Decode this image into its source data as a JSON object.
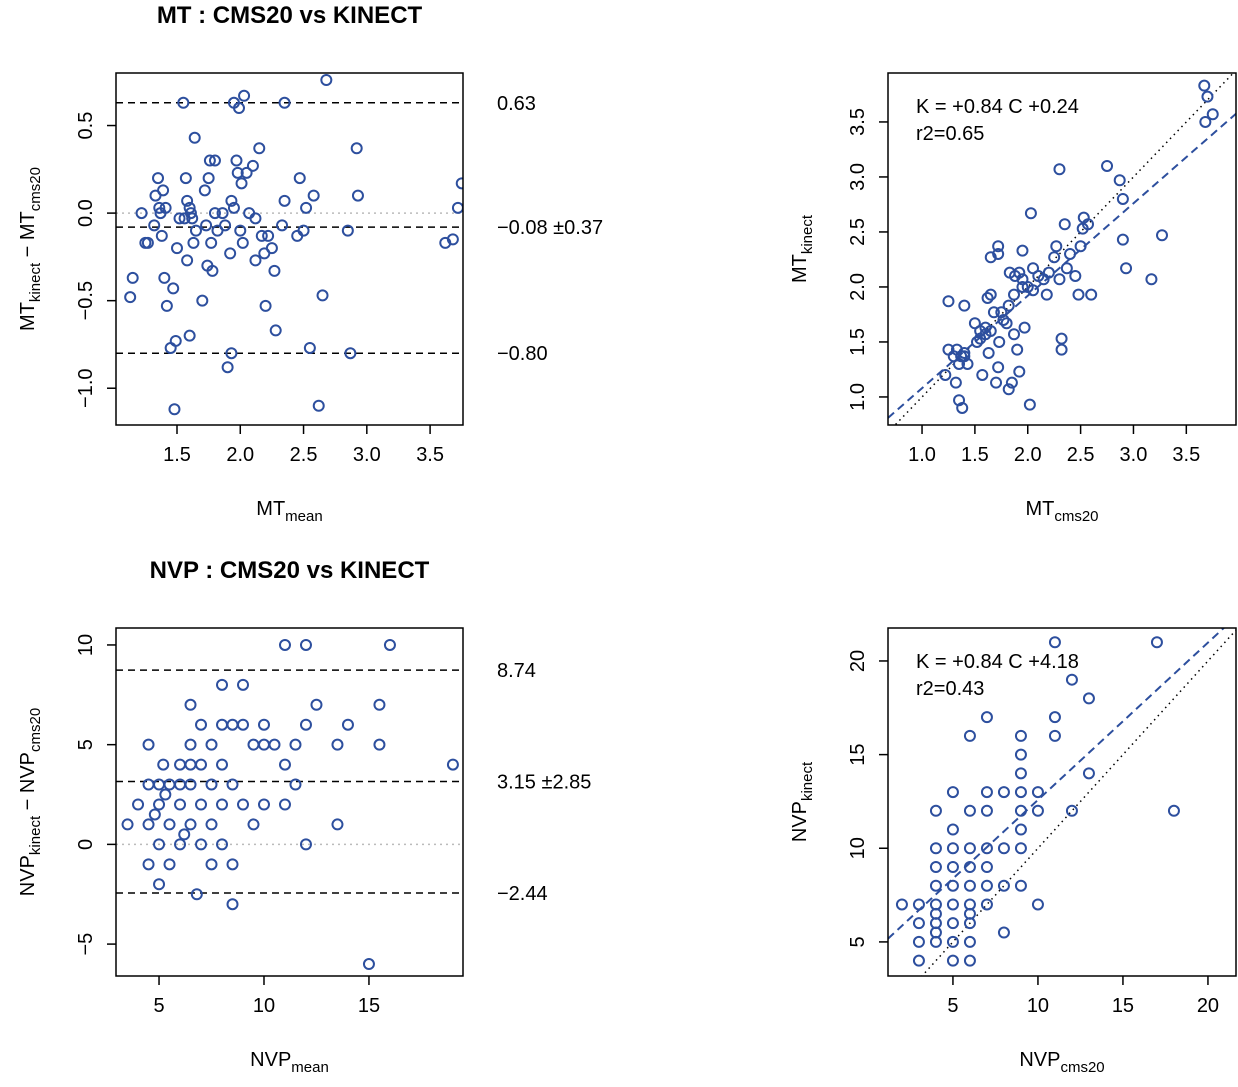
{
  "chart_data": [
    {
      "type": "bland-altman",
      "title": "MT : CMS20 vs KINECT",
      "color": "#2d4f9e",
      "xlabel": [
        "MT",
        "mean"
      ],
      "ylabel": [
        "MT",
        "kinect",
        " − MT",
        "cms20"
      ],
      "xlim": [
        1.018,
        3.76
      ],
      "ylim": [
        -1.21,
        0.8
      ],
      "xticks": [
        1.5,
        {
          "value": 2,
          "label": "2.0"
        },
        2.5,
        {
          "value": 3,
          "label": "3.0"
        },
        3.5
      ],
      "yticks": [
        {
          "value": -1,
          "label": "−1.0"
        },
        {
          "value": -0.5,
          "label": "−0.5"
        },
        {
          "value": 0,
          "label": "0.0"
        },
        0.5
      ],
      "refline": 0,
      "hlines": [
        {
          "value": 0.63,
          "label": "0.63"
        },
        {
          "value": -0.08,
          "label": "−0.08 ±0.37"
        },
        {
          "value": -0.8,
          "label": "−0.80"
        }
      ],
      "x": [
        1.13,
        1.15,
        1.22,
        1.25,
        1.27,
        1.32,
        1.33,
        1.35,
        1.36,
        1.37,
        1.38,
        1.39,
        1.4,
        1.41,
        1.42,
        1.45,
        1.47,
        1.48,
        1.49,
        1.5,
        1.52,
        1.55,
        1.56,
        1.57,
        1.58,
        1.58,
        1.6,
        1.6,
        1.61,
        1.62,
        1.63,
        1.64,
        1.65,
        1.7,
        1.72,
        1.73,
        1.74,
        1.75,
        1.76,
        1.77,
        1.78,
        1.8,
        1.8,
        1.82,
        1.86,
        1.88,
        1.9,
        1.92,
        1.93,
        1.93,
        1.95,
        1.95,
        1.97,
        1.98,
        1.99,
        2.0,
        2.01,
        2.02,
        2.03,
        2.05,
        2.07,
        2.1,
        2.12,
        2.12,
        2.15,
        2.17,
        2.19,
        2.2,
        2.22,
        2.25,
        2.27,
        2.28,
        2.33,
        2.35,
        2.35,
        2.45,
        2.47,
        2.5,
        2.52,
        2.55,
        2.58,
        2.62,
        2.65,
        2.68,
        2.85,
        2.87,
        2.92,
        2.93,
        3.62,
        3.68,
        3.72,
        3.75
      ],
      "values": [
        -0.48,
        -0.37,
        0.0,
        -0.17,
        -0.17,
        -0.07,
        0.1,
        0.2,
        0.03,
        0.0,
        -0.13,
        0.13,
        -0.37,
        0.03,
        -0.53,
        -0.77,
        -0.43,
        -1.12,
        -0.73,
        -0.2,
        -0.03,
        0.63,
        -0.03,
        0.2,
        0.07,
        -0.27,
        -0.7,
        0.03,
        0.0,
        -0.03,
        -0.17,
        0.43,
        -0.1,
        -0.5,
        0.13,
        -0.07,
        -0.3,
        0.2,
        0.3,
        -0.17,
        -0.33,
        0.3,
        0.0,
        -0.1,
        0.0,
        -0.07,
        -0.88,
        -0.23,
        0.07,
        -0.8,
        0.63,
        0.03,
        0.3,
        0.23,
        0.6,
        -0.1,
        0.17,
        -0.17,
        0.67,
        0.23,
        0.0,
        0.27,
        -0.03,
        -0.27,
        0.37,
        -0.13,
        -0.23,
        -0.53,
        -0.13,
        -0.2,
        -0.33,
        -0.67,
        -0.07,
        0.63,
        0.07,
        -0.13,
        0.2,
        -0.1,
        0.03,
        -0.77,
        0.1,
        -1.1,
        -0.47,
        0.76,
        -0.1,
        -0.8,
        0.37,
        0.1,
        -0.17,
        -0.15,
        0.03,
        0.17
      ]
    },
    {
      "type": "scatter",
      "color": "#2d4f9e",
      "xlabel": [
        "MT",
        "cms20"
      ],
      "ylabel": [
        "MT",
        "kinect"
      ],
      "annotations": [
        "K = +0.84 C +0.24",
        "r2=0.65"
      ],
      "fit": {
        "slope": 0.84,
        "intercept": 0.24
      },
      "identity_line": true,
      "xlim": [
        0.678,
        3.97
      ],
      "ylim": [
        0.745,
        3.945
      ],
      "xticks": [
        {
          "value": 1,
          "label": "1.0"
        },
        1.5,
        {
          "value": 2,
          "label": "2.0"
        },
        2.5,
        {
          "value": 3,
          "label": "3.0"
        },
        3.5
      ],
      "yticks": [
        {
          "value": 1,
          "label": "1.0"
        },
        1.5,
        {
          "value": 2,
          "label": "2.0"
        },
        2.5,
        {
          "value": 3,
          "label": "3.0"
        },
        3.5
      ],
      "x": [
        1.22,
        1.25,
        1.25,
        1.3,
        1.32,
        1.33,
        1.35,
        1.35,
        1.37,
        1.38,
        1.4,
        1.4,
        1.4,
        1.43,
        1.5,
        1.52,
        1.55,
        1.55,
        1.57,
        1.6,
        1.6,
        1.62,
        1.63,
        1.65,
        1.65,
        1.65,
        1.68,
        1.7,
        1.72,
        1.73,
        1.72,
        1.72,
        1.75,
        1.77,
        1.8,
        1.82,
        1.82,
        1.83,
        1.85,
        1.87,
        1.87,
        1.88,
        1.9,
        1.92,
        1.92,
        1.95,
        1.95,
        1.95,
        1.97,
        2.0,
        2.02,
        2.03,
        2.05,
        2.05,
        2.1,
        2.15,
        2.18,
        2.2,
        2.25,
        2.27,
        2.3,
        2.3,
        2.32,
        2.32,
        2.35,
        2.37,
        2.4,
        2.45,
        2.48,
        2.5,
        2.52,
        2.53,
        2.57,
        2.6,
        2.75,
        2.87,
        2.9,
        2.9,
        2.93,
        3.17,
        3.27,
        3.67,
        3.68,
        3.7,
        3.75
      ],
      "values": [
        1.2,
        1.87,
        1.43,
        1.37,
        1.13,
        1.43,
        0.97,
        1.3,
        1.37,
        0.9,
        1.4,
        1.37,
        1.83,
        1.3,
        1.67,
        1.5,
        1.6,
        1.53,
        1.2,
        1.63,
        1.57,
        1.9,
        1.4,
        1.6,
        1.93,
        2.27,
        1.77,
        1.13,
        1.27,
        1.5,
        2.3,
        2.37,
        1.77,
        1.7,
        1.67,
        1.83,
        1.07,
        2.13,
        1.13,
        1.57,
        1.93,
        2.1,
        1.43,
        2.13,
        1.23,
        2.07,
        2.0,
        2.33,
        1.63,
        2.0,
        0.93,
        2.67,
        1.97,
        2.17,
        2.1,
        2.07,
        1.93,
        2.13,
        2.27,
        2.37,
        3.07,
        2.07,
        1.53,
        1.43,
        2.57,
        2.17,
        2.3,
        2.1,
        1.93,
        2.37,
        2.53,
        2.63,
        2.57,
        1.93,
        3.1,
        2.97,
        2.8,
        2.43,
        2.17,
        2.07,
        2.47,
        3.83,
        3.5,
        3.73,
        3.57
      ]
    },
    {
      "type": "bland-altman",
      "title": "NVP : CMS20 vs KINECT",
      "color": "#2d4f9e",
      "xlabel": [
        "NVP",
        "mean"
      ],
      "ylabel": [
        "NVP",
        "kinect",
        " − NVP",
        "cms20"
      ],
      "xlim": [
        2.95,
        19.48
      ],
      "ylim": [
        -6.6,
        10.85
      ],
      "xticks": [
        5,
        10,
        15
      ],
      "yticks": [
        {
          "value": -5,
          "label": "−5"
        },
        0,
        5,
        10
      ],
      "refline": 0,
      "hlines": [
        {
          "value": 8.74,
          "label": "8.74"
        },
        {
          "value": 3.15,
          "label": "3.15 ±2.85"
        },
        {
          "value": -2.44,
          "label": "−2.44"
        }
      ],
      "x": [
        3.5,
        4,
        4.5,
        4.5,
        4.5,
        4.5,
        4.8,
        5,
        5,
        5,
        5,
        5.2,
        5.3,
        5.5,
        5.5,
        5.5,
        6,
        6,
        6,
        6,
        6.2,
        6.5,
        6.5,
        6.5,
        6.5,
        6.5,
        6.8,
        7,
        7,
        7,
        7,
        7.5,
        7.5,
        7.5,
        7.5,
        8,
        8,
        8,
        8,
        8,
        8.5,
        8.5,
        8.5,
        8.5,
        9,
        9,
        9,
        9.5,
        9.5,
        10,
        10,
        10,
        10.5,
        11,
        11,
        11,
        11.5,
        11.5,
        12,
        12,
        12,
        12.5,
        13.5,
        13.5,
        14,
        15,
        15.5,
        15.5,
        16,
        19
      ],
      "values": [
        1,
        2,
        5,
        3,
        1,
        -1,
        1.5,
        3,
        2,
        -2,
        0,
        4,
        2.5,
        -1,
        3,
        1,
        4,
        3,
        2,
        0,
        0.5,
        7,
        5,
        3,
        1,
        4,
        -2.5,
        6,
        4,
        2,
        0,
        5,
        3,
        1,
        -1,
        8,
        6,
        4,
        2,
        0,
        -1,
        -3,
        6,
        3,
        8,
        6,
        2,
        1,
        5,
        6,
        5,
        2,
        5,
        10,
        4,
        2,
        5,
        3,
        10,
        6,
        0,
        7,
        5,
        1,
        6,
        -6,
        7,
        5,
        10,
        4
      ]
    },
    {
      "type": "scatter",
      "color": "#2d4f9e",
      "xlabel": [
        "NVP",
        "cms20"
      ],
      "ylabel": [
        "NVP",
        "kinect"
      ],
      "annotations": [
        "K = +0.84 C +4.18",
        "r2=0.43"
      ],
      "fit": {
        "slope": 0.84,
        "intercept": 4.18
      },
      "identity_line": true,
      "xlim": [
        1.18,
        21.65
      ],
      "ylim": [
        3.18,
        21.76
      ],
      "xticks": [
        5,
        10,
        15,
        20
      ],
      "yticks": [
        5,
        10,
        15,
        20
      ],
      "x": [
        2,
        3,
        3,
        3,
        3,
        4,
        4,
        4,
        4,
        4,
        4,
        4,
        4,
        4,
        5,
        5,
        5,
        5,
        5,
        5,
        5,
        5,
        5,
        6,
        6,
        6,
        6,
        6,
        6,
        6,
        6,
        6,
        6,
        7,
        7,
        7,
        7,
        7,
        7,
        7,
        8,
        8,
        8,
        8,
        9,
        9,
        9,
        9,
        9,
        9,
        9,
        9,
        10,
        10,
        10,
        11,
        11,
        11,
        12,
        12,
        13,
        13,
        17,
        18
      ],
      "values": [
        7,
        7,
        6,
        5,
        4,
        12,
        10,
        9,
        8,
        7,
        6.5,
        6,
        5.5,
        5,
        13,
        11,
        10,
        9,
        8,
        7,
        6,
        5,
        4,
        16,
        12,
        10,
        9,
        8,
        7,
        6.5,
        6,
        5,
        4,
        17,
        13,
        12,
        10,
        9,
        8,
        7,
        13,
        10,
        8,
        5.5,
        16,
        15,
        14,
        13,
        12,
        11,
        10,
        8,
        13,
        12,
        7,
        21,
        17,
        16,
        19,
        12,
        18,
        14,
        21,
        12
      ]
    }
  ]
}
